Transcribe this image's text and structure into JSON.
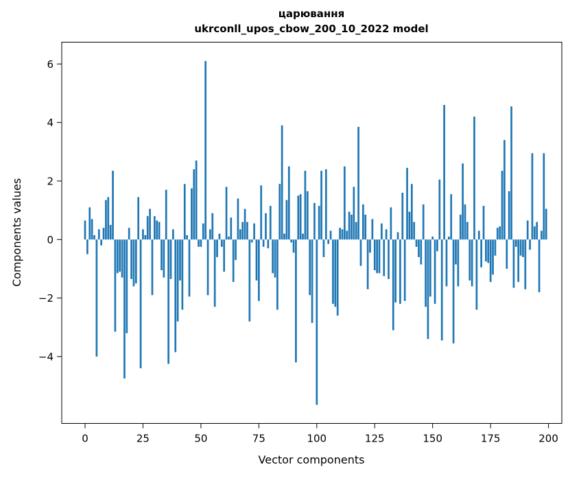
{
  "figure": {
    "background": "#ffffff",
    "text_color": "#000000",
    "spine_color": "#000000"
  },
  "chart_data": {
    "type": "bar",
    "title_line1": "царювання",
    "title_line2": "ukrconll_upos_cbow_200_10_2022 model",
    "title": "царювання\nukrconll_upos_cbow_200_10_2022 model",
    "xlabel": "Vector components",
    "ylabel": "Components values",
    "bar_color": "#1f77b4",
    "grid": false,
    "legend": null,
    "x_ticks": [
      0,
      25,
      50,
      75,
      100,
      125,
      150,
      175,
      200
    ],
    "y_ticks": [
      6,
      4,
      2,
      0,
      -2,
      -4
    ],
    "xlim": [
      -10.1,
      205.8
    ],
    "ylim": [
      -6.3,
      6.75
    ],
    "x_is_component_index": true,
    "n_components": 200,
    "values": [
      0.65,
      -0.5,
      1.1,
      0.7,
      0.15,
      -4.0,
      0.35,
      -0.2,
      0.4,
      1.35,
      1.45,
      0.5,
      2.35,
      -3.15,
      -1.15,
      -1.1,
      -1.3,
      -4.75,
      -3.2,
      0.4,
      -1.35,
      -1.6,
      -1.5,
      1.45,
      -4.4,
      0.35,
      0.15,
      0.8,
      1.05,
      -1.9,
      0.8,
      0.65,
      0.6,
      -1.05,
      -1.3,
      1.7,
      -4.25,
      -1.35,
      0.35,
      -3.85,
      -2.8,
      -1.4,
      -2.4,
      1.9,
      0.15,
      -1.95,
      1.75,
      2.4,
      2.7,
      -0.25,
      -0.25,
      0.55,
      6.1,
      -1.9,
      0.35,
      0.9,
      -2.3,
      -0.6,
      0.2,
      -0.25,
      -1.1,
      1.8,
      0.1,
      0.75,
      -1.45,
      -0.7,
      1.4,
      0.35,
      0.6,
      1.05,
      0.6,
      -2.8,
      -0.1,
      0.55,
      -1.4,
      -2.1,
      1.85,
      -0.25,
      0.9,
      -0.3,
      1.15,
      -1.15,
      -1.3,
      -2.4,
      1.9,
      3.9,
      0.2,
      1.35,
      2.5,
      -0.1,
      -0.45,
      -4.2,
      1.5,
      1.55,
      0.2,
      2.35,
      1.65,
      -1.9,
      -2.85,
      1.25,
      -5.65,
      1.15,
      2.35,
      -0.6,
      2.4,
      -0.15,
      0.3,
      -2.2,
      -2.3,
      -2.6,
      0.4,
      0.35,
      2.5,
      0.3,
      0.95,
      0.85,
      1.8,
      0.6,
      3.85,
      -0.9,
      1.2,
      0.85,
      -1.7,
      -0.45,
      0.7,
      -1.05,
      -1.15,
      -1.15,
      0.55,
      -1.25,
      0.35,
      -1.35,
      1.1,
      -3.1,
      -2.15,
      0.25,
      -2.2,
      1.6,
      -2.1,
      2.45,
      0.95,
      1.9,
      0.6,
      -0.25,
      -0.6,
      -0.85,
      1.2,
      -2.3,
      -3.4,
      -1.95,
      0.1,
      -2.2,
      -0.4,
      2.05,
      -3.45,
      4.6,
      -1.6,
      0.1,
      1.55,
      -3.55,
      -0.85,
      -1.6,
      0.85,
      2.6,
      1.2,
      0.6,
      -1.4,
      -1.6,
      4.2,
      -2.4,
      0.3,
      -0.95,
      1.15,
      -0.75,
      -0.8,
      -1.45,
      -1.2,
      -0.55,
      0.4,
      0.45,
      2.35,
      3.4,
      -1.0,
      1.65,
      4.55,
      -1.65,
      -0.25,
      -1.45,
      -0.55,
      -0.6,
      -1.7,
      0.65,
      -0.35,
      2.95,
      0.45,
      0.6,
      -1.8,
      0.3,
      2.95,
      1.05
    ]
  }
}
